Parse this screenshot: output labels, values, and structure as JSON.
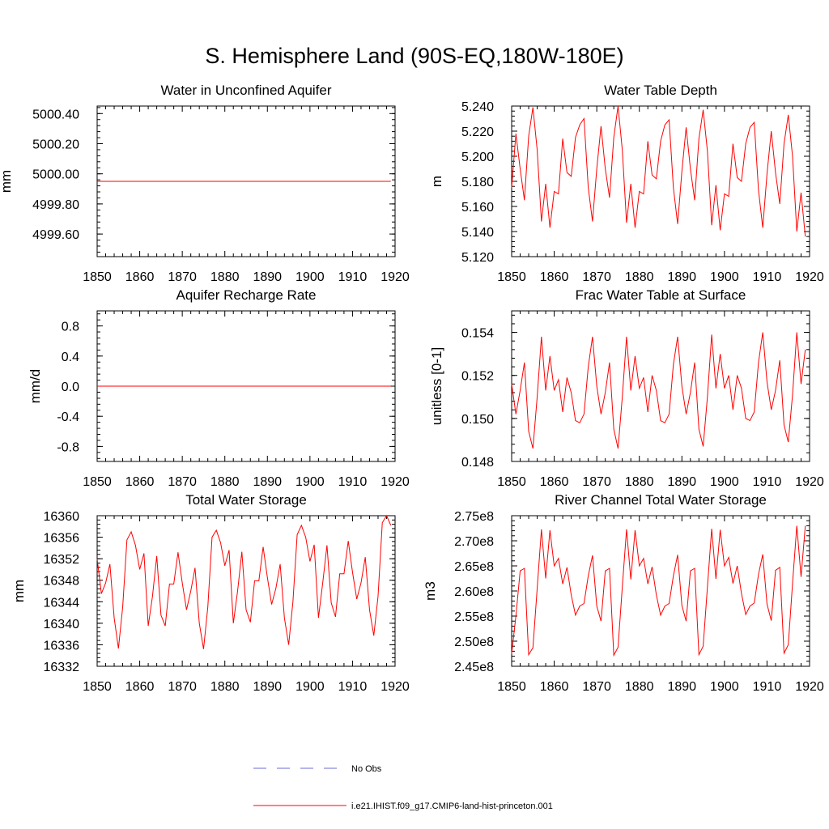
{
  "title": "S. Hemisphere Land (90S-EQ,180W-180E)",
  "colors": {
    "model": "#ff0000",
    "obs": "#6b6bd6",
    "axis": "#000000"
  },
  "legend": {
    "entries": [
      {
        "label": "No Obs",
        "style": "dashed",
        "color": "#6b6bd6"
      },
      {
        "label": "i.e21.IHIST.f09_g17.CMIP6-land-hist-princeton.001",
        "style": "solid",
        "color": "#ff0000"
      }
    ]
  },
  "chart_data": [
    {
      "type": "line",
      "title": "Water in Unconfined Aquifer",
      "xlabel": "",
      "ylabel": "mm",
      "xlim": [
        1850,
        1920
      ],
      "ylim": [
        4999.45,
        5000.45
      ],
      "xticks": [
        "1850",
        "1860",
        "1870",
        "1880",
        "1890",
        "1900",
        "1910",
        "1920"
      ],
      "yticks": [
        {
          "v": 4999.6,
          "label": "4999.60"
        },
        {
          "v": 4999.8,
          "label": "4999.80"
        },
        {
          "v": 5000.0,
          "label": "5000.00"
        },
        {
          "v": 5000.2,
          "label": "5000.20"
        },
        {
          "v": 5000.4,
          "label": "5000.40"
        }
      ],
      "series": [
        {
          "x0": 1850,
          "dx": 1,
          "values": [
            4999.95,
            4999.95,
            4999.95,
            4999.95,
            4999.95,
            4999.95,
            4999.95,
            4999.95,
            4999.95,
            4999.95,
            4999.95,
            4999.95,
            4999.95,
            4999.95,
            4999.95,
            4999.95,
            4999.95,
            4999.95,
            4999.95,
            4999.95,
            4999.95,
            4999.95,
            4999.95,
            4999.95,
            4999.95,
            4999.95,
            4999.95,
            4999.95,
            4999.95,
            4999.95,
            4999.95,
            4999.95,
            4999.95,
            4999.95,
            4999.95,
            4999.95,
            4999.95,
            4999.95,
            4999.95,
            4999.95,
            4999.95,
            4999.95,
            4999.95,
            4999.95,
            4999.95,
            4999.95,
            4999.95,
            4999.95,
            4999.95,
            4999.95,
            4999.95,
            4999.95,
            4999.95,
            4999.95,
            4999.95,
            4999.95,
            4999.95,
            4999.95,
            4999.95,
            4999.95,
            4999.95,
            4999.95,
            4999.95,
            4999.95,
            4999.95,
            4999.95,
            4999.95,
            4999.95,
            4999.95,
            4999.95
          ]
        }
      ]
    },
    {
      "type": "line",
      "title": "Water Table Depth",
      "xlabel": "",
      "ylabel": "m",
      "xlim": [
        1850,
        1920
      ],
      "ylim": [
        5.12,
        5.24
      ],
      "xticks": [
        "1850",
        "1860",
        "1870",
        "1880",
        "1890",
        "1900",
        "1910",
        "1920"
      ],
      "yticks": [
        {
          "v": 5.12,
          "label": "5.120"
        },
        {
          "v": 5.14,
          "label": "5.140"
        },
        {
          "v": 5.16,
          "label": "5.160"
        },
        {
          "v": 5.18,
          "label": "5.180"
        },
        {
          "v": 5.2,
          "label": "5.200"
        },
        {
          "v": 5.22,
          "label": "5.220"
        },
        {
          "v": 5.24,
          "label": "5.240"
        }
      ],
      "series": [
        {
          "x0": 1850,
          "dx": 1,
          "values": [
            5.175,
            5.218,
            5.19,
            5.165,
            5.216,
            5.239,
            5.205,
            5.148,
            5.178,
            5.143,
            5.172,
            5.17,
            5.214,
            5.187,
            5.184,
            5.215,
            5.225,
            5.23,
            5.175,
            5.148,
            5.19,
            5.224,
            5.19,
            5.167,
            5.215,
            5.24,
            5.205,
            5.147,
            5.178,
            5.143,
            5.172,
            5.17,
            5.212,
            5.185,
            5.182,
            5.212,
            5.225,
            5.229,
            5.175,
            5.146,
            5.188,
            5.223,
            5.19,
            5.165,
            5.214,
            5.237,
            5.204,
            5.145,
            5.177,
            5.141,
            5.17,
            5.168,
            5.21,
            5.183,
            5.18,
            5.21,
            5.223,
            5.227,
            5.173,
            5.143,
            5.186,
            5.22,
            5.187,
            5.162,
            5.21,
            5.233,
            5.2,
            5.14,
            5.171,
            5.136
          ]
        }
      ]
    },
    {
      "type": "line",
      "title": "Aquifer Recharge Rate",
      "xlabel": "",
      "ylabel": "mm/d",
      "xlim": [
        1850,
        1920
      ],
      "ylim": [
        -1.0,
        1.0
      ],
      "xticks": [
        "1850",
        "1860",
        "1870",
        "1880",
        "1890",
        "1900",
        "1910",
        "1920"
      ],
      "yticks": [
        {
          "v": -0.8,
          "label": "-0.8"
        },
        {
          "v": -0.4,
          "label": "-0.4"
        },
        {
          "v": 0.0,
          "label": "0.0"
        },
        {
          "v": 0.4,
          "label": "0.4"
        },
        {
          "v": 0.8,
          "label": "0.8"
        }
      ],
      "series": [
        {
          "x0": 1850,
          "dx": 1,
          "values": [
            0,
            0,
            0,
            0,
            0,
            0,
            0,
            0,
            0,
            0,
            0,
            0,
            0,
            0,
            0,
            0,
            0,
            0,
            0,
            0,
            0,
            0,
            0,
            0,
            0,
            0,
            0,
            0,
            0,
            0,
            0,
            0,
            0,
            0,
            0,
            0,
            0,
            0,
            0,
            0,
            0,
            0,
            0,
            0,
            0,
            0,
            0,
            0,
            0,
            0,
            0,
            0,
            0,
            0,
            0,
            0,
            0,
            0,
            0,
            0,
            0,
            0,
            0,
            0,
            0,
            0,
            0,
            0,
            0,
            0
          ]
        }
      ]
    },
    {
      "type": "line",
      "title": "Frac Water Table at Surface",
      "xlabel": "",
      "ylabel": "unitless [0-1]",
      "xlim": [
        1850,
        1920
      ],
      "ylim": [
        0.148,
        0.155
      ],
      "xticks": [
        "1850",
        "1860",
        "1870",
        "1880",
        "1890",
        "1900",
        "1910",
        "1920"
      ],
      "yticks": [
        {
          "v": 0.148,
          "label": "0.148"
        },
        {
          "v": 0.15,
          "label": "0.150"
        },
        {
          "v": 0.152,
          "label": "0.152"
        },
        {
          "v": 0.154,
          "label": "0.154"
        }
      ],
      "series": [
        {
          "x0": 1850,
          "dx": 1,
          "values": [
            0.1516,
            0.1502,
            0.1513,
            0.1526,
            0.1494,
            0.1486,
            0.151,
            0.1538,
            0.1513,
            0.1529,
            0.1513,
            0.1518,
            0.1503,
            0.1519,
            0.1512,
            0.1499,
            0.1498,
            0.1502,
            0.1524,
            0.1538,
            0.1515,
            0.1502,
            0.1512,
            0.1526,
            0.1495,
            0.1486,
            0.151,
            0.1538,
            0.1513,
            0.1529,
            0.1514,
            0.1519,
            0.1503,
            0.152,
            0.1513,
            0.1499,
            0.1498,
            0.1502,
            0.1525,
            0.1538,
            0.1515,
            0.1502,
            0.1512,
            0.1526,
            0.1495,
            0.1487,
            0.151,
            0.1539,
            0.1514,
            0.153,
            0.1514,
            0.152,
            0.1504,
            0.152,
            0.1514,
            0.15,
            0.1499,
            0.1503,
            0.1526,
            0.154,
            0.1517,
            0.1504,
            0.1513,
            0.1527,
            0.1497,
            0.1489,
            0.1511,
            0.154,
            0.1516,
            0.1532
          ]
        }
      ]
    },
    {
      "type": "line",
      "title": "Total Water Storage",
      "xlabel": "",
      "ylabel": "mm",
      "xlim": [
        1850,
        1920
      ],
      "ylim": [
        16332,
        16360
      ],
      "xticks": [
        "1850",
        "1860",
        "1870",
        "1880",
        "1890",
        "1900",
        "1910",
        "1920"
      ],
      "yticks": [
        {
          "v": 16332,
          "label": "16332"
        },
        {
          "v": 16336,
          "label": "16336"
        },
        {
          "v": 16340,
          "label": "16340"
        },
        {
          "v": 16344,
          "label": "16344"
        },
        {
          "v": 16348,
          "label": "16348"
        },
        {
          "v": 16352,
          "label": "16352"
        },
        {
          "v": 16356,
          "label": "16356"
        },
        {
          "v": 16360,
          "label": "16360"
        }
      ],
      "series": [
        {
          "x0": 1850,
          "dx": 1,
          "values": [
            16352,
            16345.5,
            16347.5,
            16351,
            16341,
            16335.3,
            16343,
            16355.5,
            16357,
            16354.5,
            16350,
            16353,
            16339.5,
            16345,
            16352.5,
            16341.5,
            16339.5,
            16347.3,
            16347.3,
            16353.2,
            16347.5,
            16342.5,
            16346,
            16350.3,
            16340,
            16335.2,
            16343,
            16356,
            16357.3,
            16355,
            16350.7,
            16353.6,
            16340,
            16346,
            16353.3,
            16342.5,
            16340.2,
            16347.9,
            16347.9,
            16354.2,
            16348.5,
            16343.5,
            16346.5,
            16351,
            16341,
            16336,
            16344,
            16356.5,
            16358.2,
            16356,
            16351.5,
            16354.6,
            16341,
            16347.5,
            16354.5,
            16343.8,
            16341.2,
            16349.2,
            16349.2,
            16355.3,
            16349.5,
            16344.5,
            16347.5,
            16352.3,
            16342.5,
            16337.7,
            16345,
            16358.7,
            16360,
            16358.2
          ]
        }
      ]
    },
    {
      "type": "line",
      "title": "River Channel Total Water Storage",
      "xlabel": "",
      "ylabel": "m3",
      "xlim": [
        1850,
        1920
      ],
      "ylim": [
        245000000,
        275000000
      ],
      "xticks": [
        "1850",
        "1860",
        "1870",
        "1880",
        "1890",
        "1900",
        "1910",
        "1920"
      ],
      "yticks": [
        {
          "v": 245000000,
          "label": "2.45e8"
        },
        {
          "v": 250000000,
          "label": "2.50e8"
        },
        {
          "v": 255000000,
          "label": "2.55e8"
        },
        {
          "v": 260000000,
          "label": "2.60e8"
        },
        {
          "v": 265000000,
          "label": "2.65e8"
        },
        {
          "v": 270000000,
          "label": "2.70e8"
        },
        {
          "v": 275000000,
          "label": "2.75e8"
        }
      ],
      "series": [
        {
          "x0": 1850,
          "dx": 1,
          "values": [
            247500000,
            255000000,
            264000000,
            264500000,
            247300000,
            248700000,
            260500000,
            272300000,
            262500000,
            272100000,
            265000000,
            266500000,
            261400000,
            264700000,
            259200000,
            255200000,
            257000000,
            257500000,
            263000000,
            267100000,
            257000000,
            254000000,
            264000000,
            264500000,
            247200000,
            248800000,
            260800000,
            272300000,
            262300000,
            272100000,
            265000000,
            266500000,
            261400000,
            264800000,
            259200000,
            255200000,
            257000000,
            257500000,
            263000000,
            267200000,
            257100000,
            254000000,
            264000000,
            264500000,
            247300000,
            249000000,
            260800000,
            272400000,
            262400000,
            272200000,
            265000000,
            266700000,
            261500000,
            265000000,
            259500000,
            255300000,
            257000000,
            257600000,
            263300000,
            267300000,
            257400000,
            254100000,
            264100000,
            264700000,
            247600000,
            249300000,
            261500000,
            273000000,
            262800000,
            273000000
          ]
        }
      ]
    }
  ]
}
